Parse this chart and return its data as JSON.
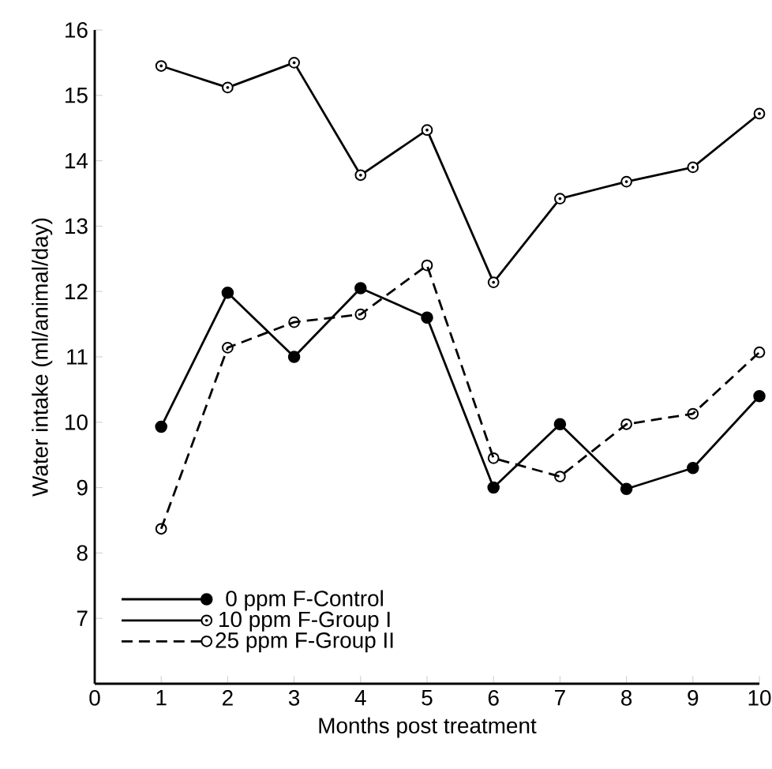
{
  "chart_data": {
    "type": "line",
    "xlabel": "Months post treatment",
    "ylabel": "Water intake (ml/animal/day)",
    "x": [
      1,
      2,
      3,
      4,
      5,
      6,
      7,
      8,
      9,
      10
    ],
    "series": [
      {
        "name": "0  ppm  F-Control",
        "color": "#000000",
        "line_style": "solid",
        "values": [
          9.93,
          11.98,
          11.0,
          12.05,
          11.6,
          9.0,
          9.97,
          8.98,
          9.3,
          10.4
        ]
      },
      {
        "name": "10 ppm  F-Group I",
        "color": "#000000",
        "line_style": "solid",
        "values": [
          15.45,
          15.12,
          15.5,
          13.78,
          14.47,
          12.14,
          13.42,
          13.68,
          13.9,
          14.72
        ]
      },
      {
        "name": "25 ppm  F-Group II",
        "color": "#000000",
        "line_style": "dashed",
        "values": [
          8.37,
          11.14,
          11.53,
          11.65,
          12.4,
          9.45,
          9.17,
          9.97,
          10.13,
          11.07
        ]
      }
    ],
    "xlim": [
      0,
      10
    ],
    "xticks": [
      0,
      1,
      2,
      3,
      4,
      5,
      6,
      7,
      8,
      9,
      10
    ],
    "ylim": [
      6,
      16
    ],
    "yticks": [
      7,
      8,
      9,
      10,
      11,
      12,
      13,
      14,
      15,
      16
    ],
    "grid": false,
    "legend": "bottom left",
    "marker": "circle"
  }
}
